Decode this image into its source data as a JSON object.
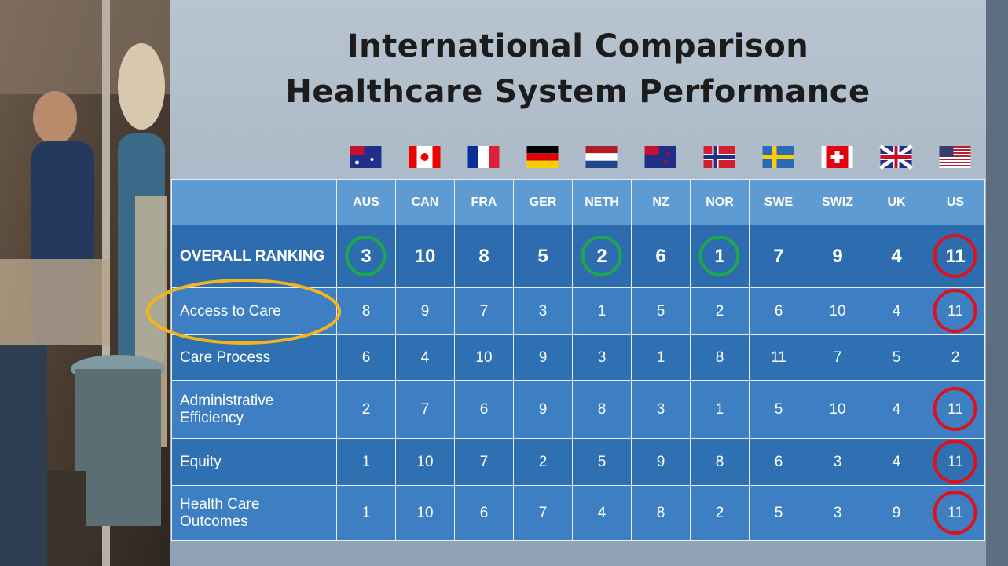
{
  "header": {
    "title_lines": [
      "International Comparison",
      "Healthcare System Performance"
    ]
  },
  "table": {
    "columns": [
      "AUS",
      "CAN",
      "FRA",
      "GER",
      "NETH",
      "NZ",
      "NOR",
      "SWE",
      "SWIZ",
      "UK",
      "US"
    ],
    "rows": [
      {
        "label": "OVERALL RANKING",
        "values": [
          3,
          10,
          8,
          5,
          2,
          6,
          1,
          7,
          9,
          4,
          11
        ]
      },
      {
        "label": "Access to Care",
        "values": [
          8,
          9,
          7,
          3,
          1,
          5,
          2,
          6,
          10,
          4,
          11
        ]
      },
      {
        "label": "Care Process",
        "values": [
          6,
          4,
          10,
          9,
          3,
          1,
          8,
          11,
          7,
          5,
          2
        ]
      },
      {
        "label": "Administrative Efficiency",
        "values": [
          2,
          7,
          6,
          9,
          8,
          3,
          1,
          5,
          10,
          4,
          11
        ]
      },
      {
        "label": "Equity",
        "values": [
          1,
          10,
          7,
          2,
          5,
          9,
          8,
          6,
          3,
          4,
          11
        ]
      },
      {
        "label": "Health Care Outcomes",
        "values": [
          1,
          10,
          6,
          7,
          4,
          8,
          2,
          5,
          3,
          9,
          11
        ]
      }
    ]
  }
}
